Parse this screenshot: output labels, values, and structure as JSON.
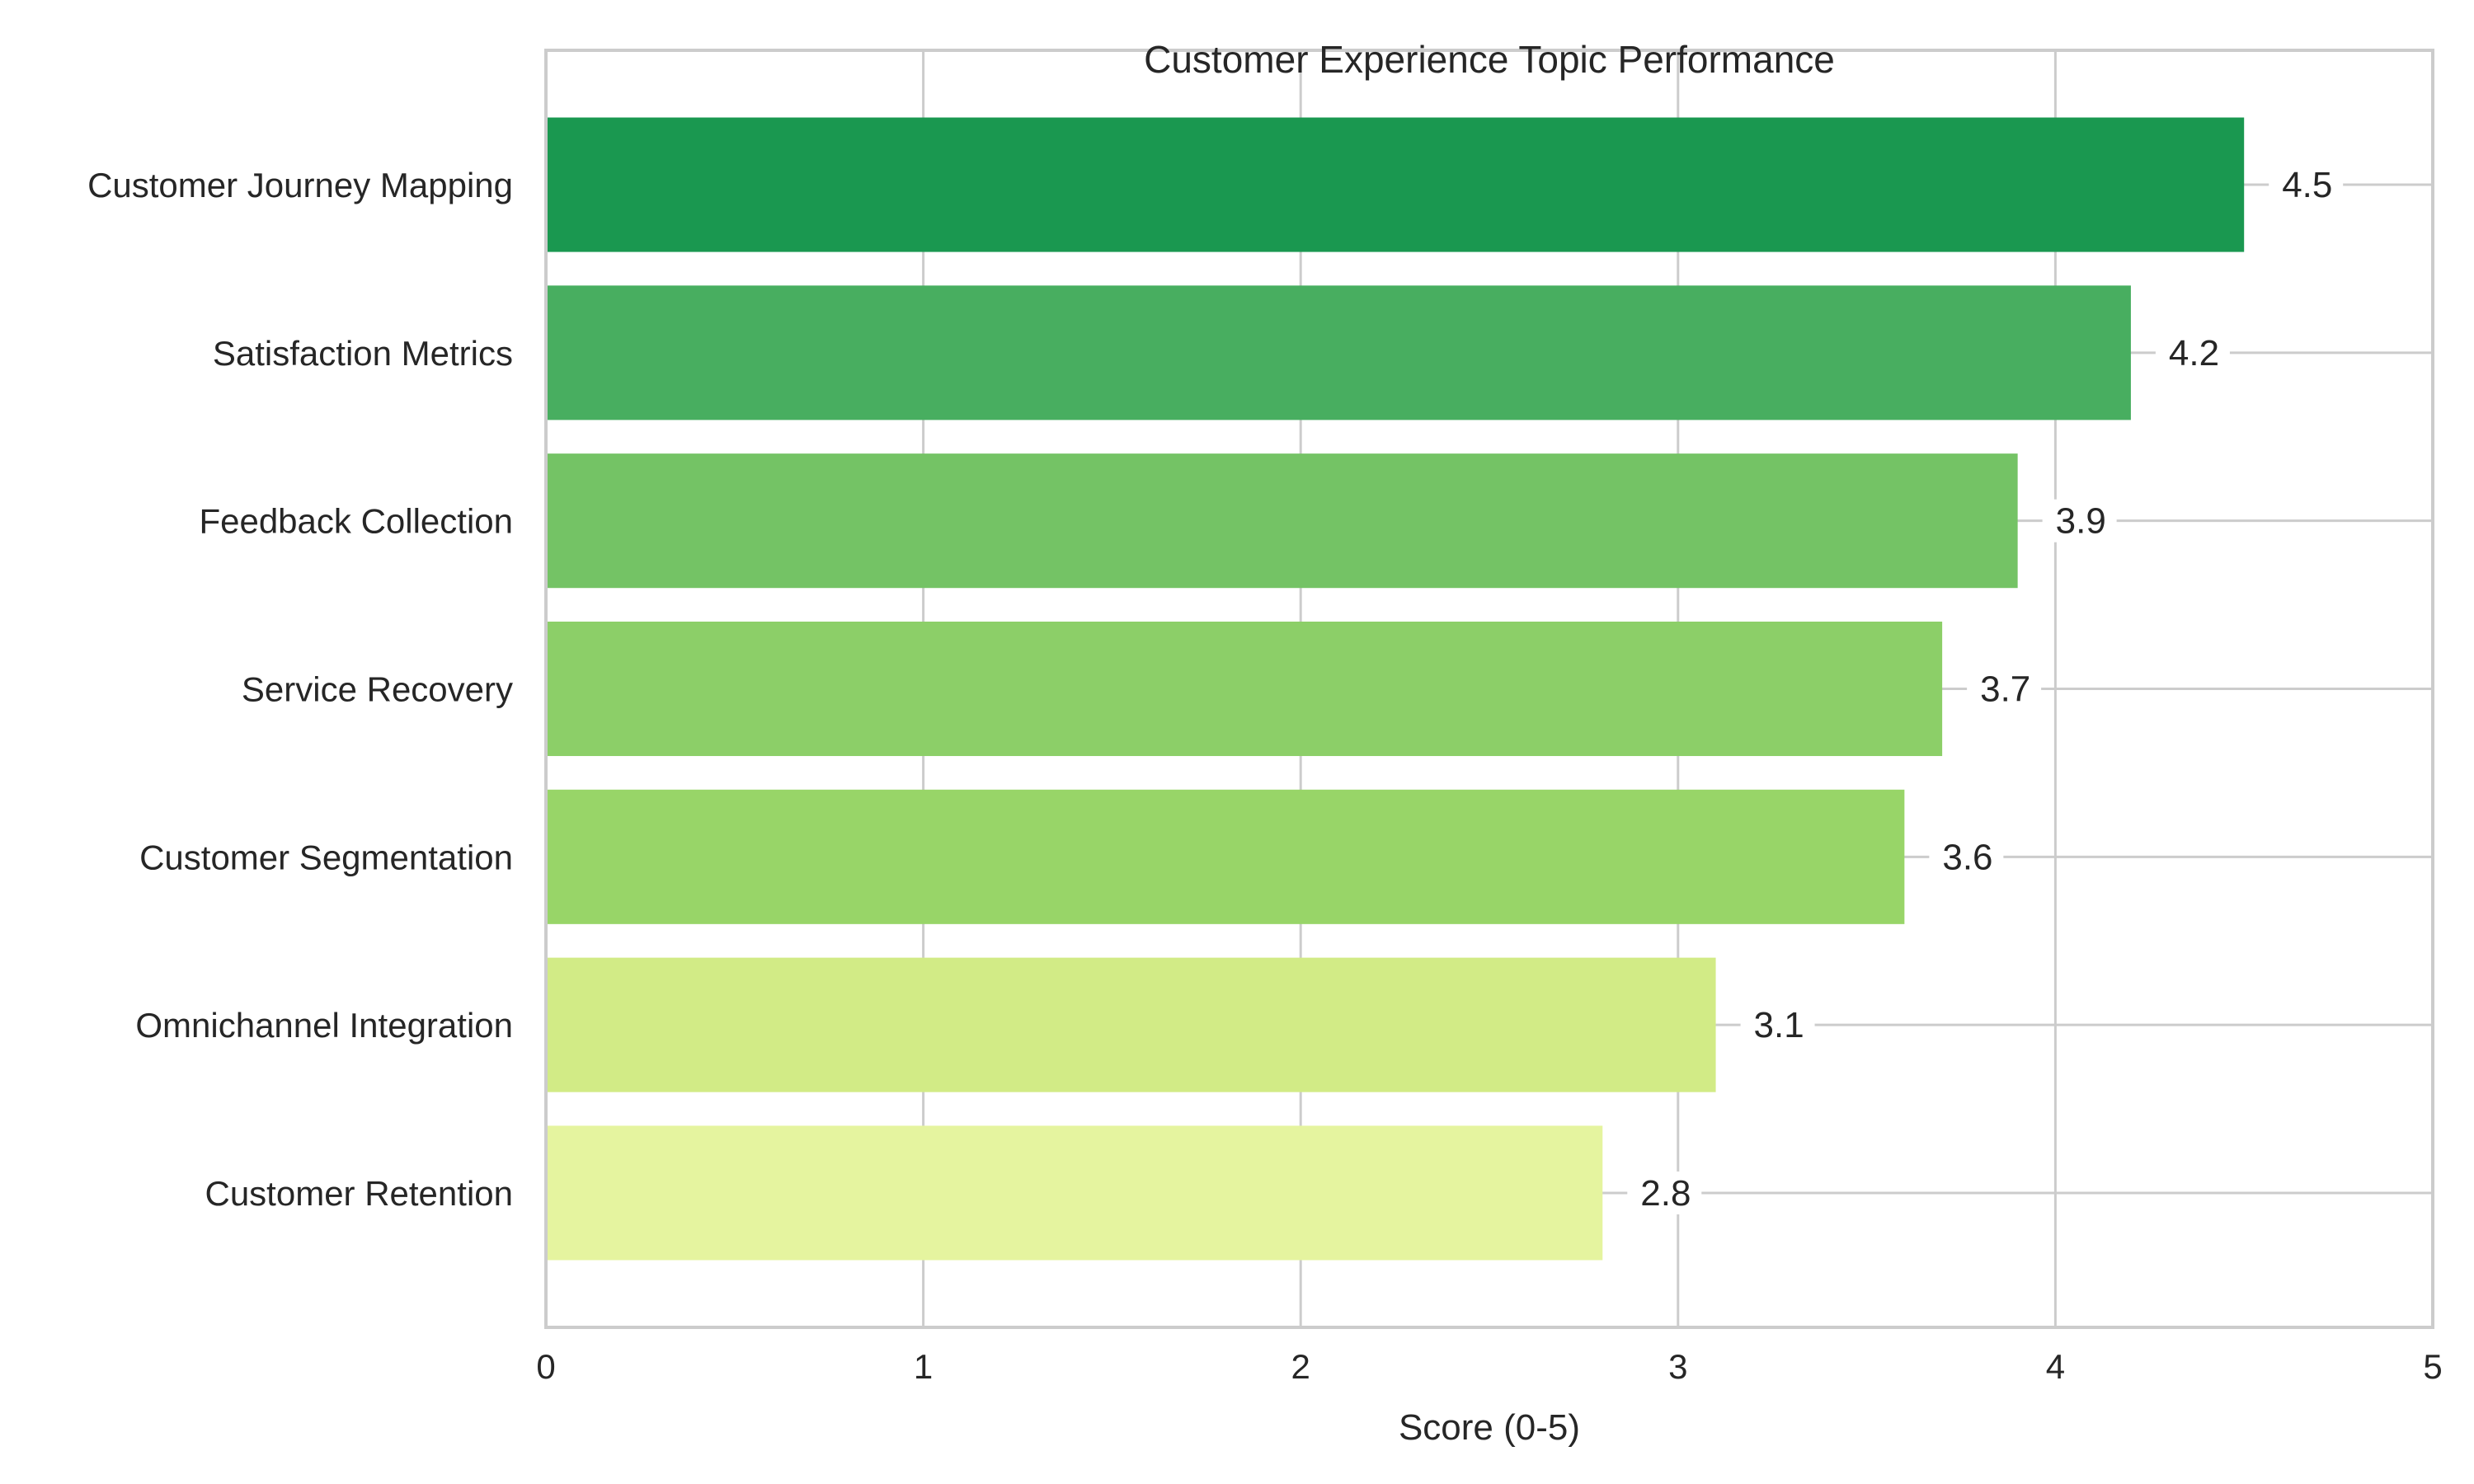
{
  "chart_data": {
    "type": "bar",
    "orientation": "horizontal",
    "title": "Customer Experience Topic Performance",
    "xlabel": "Score (0-5)",
    "ylabel": "",
    "xlim": [
      0,
      5
    ],
    "x_ticks": [
      "0",
      "1",
      "2",
      "3",
      "4",
      "5"
    ],
    "grid": true,
    "categories": [
      "Customer Journey Mapping",
      "Satisfaction Metrics",
      "Feedback Collection",
      "Service Recovery",
      "Customer Segmentation",
      "Omnichannel Integration",
      "Customer Retention"
    ],
    "values": [
      4.5,
      4.2,
      3.9,
      3.7,
      3.6,
      3.1,
      2.8
    ],
    "value_labels": [
      "4.5",
      "4.2",
      "3.9",
      "3.7",
      "3.6",
      "3.1",
      "2.8"
    ],
    "colors": [
      "#1a9850",
      "#48ae60",
      "#74c365",
      "#8ccf68",
      "#98d568",
      "#d2eb86",
      "#e5f49f"
    ]
  },
  "colors": {
    "grid": "#cccccc",
    "spine": "#cccccc",
    "text": "#262626",
    "background": "#ffffff"
  }
}
